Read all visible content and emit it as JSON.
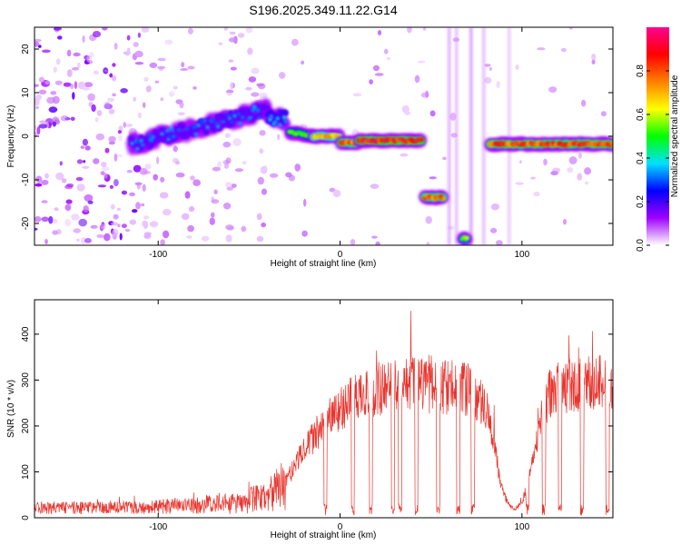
{
  "title": "S196.2025.349.11.22.G14",
  "chart_data": [
    {
      "type": "heatmap",
      "xlabel": "Height of straight line (km)",
      "ylabel": "Frequency (Hz)",
      "xlim": [
        -168,
        150
      ],
      "ylim": [
        -25,
        25
      ],
      "xticks": [
        -100,
        0,
        100
      ],
      "yticks": [
        -20,
        -10,
        0,
        10,
        20
      ],
      "colorbar": {
        "label": "Normalized spectral amplitude",
        "range": [
          0,
          1
        ],
        "ticks": [
          "0.0",
          "0.2",
          "0.4",
          "0.6",
          "0.8"
        ],
        "tick_values": [
          0,
          0.2,
          0.4,
          0.6,
          0.8
        ],
        "colors": [
          "#ffffff",
          "#a000ff",
          "#0000ff",
          "#00e0ff",
          "#00ff00",
          "#ffff00",
          "#ff8000",
          "#ff0000",
          "#ff0090"
        ]
      },
      "segments": [
        {
          "x0": -115,
          "x1": -40,
          "f0": -2,
          "f1": 6,
          "amp": 0.35
        },
        {
          "x0": -40,
          "x1": -30,
          "f0": 4,
          "f1": 4,
          "amp": 0.4
        },
        {
          "x0": -28,
          "x1": -15,
          "f0": 1,
          "f1": 0,
          "amp": 0.55
        },
        {
          "x0": -15,
          "x1": 0,
          "f0": 0,
          "f1": 0,
          "amp": 0.75
        },
        {
          "x0": 0,
          "x1": 10,
          "f0": -1.5,
          "f1": -1.5,
          "amp": 0.85
        },
        {
          "x0": 10,
          "x1": 45,
          "f0": -1,
          "f1": -1,
          "amp": 0.95
        },
        {
          "x0": 46,
          "x1": 57,
          "f0": -14,
          "f1": -14,
          "amp": 0.85
        },
        {
          "x0": 67,
          "x1": 70,
          "f0": -23.5,
          "f1": -23.5,
          "amp": 0.6
        },
        {
          "x0": 82,
          "x1": 150,
          "f0": -1.8,
          "f1": -1.8,
          "amp": 0.88
        }
      ]
    },
    {
      "type": "line",
      "xlabel": "Height of straight line (km)",
      "ylabel": "SNR (10 * v/v)",
      "xlim": [
        -168,
        150
      ],
      "ylim": [
        0,
        475
      ],
      "xticks": [
        -100,
        0,
        100
      ],
      "yticks": [
        0,
        100,
        200,
        300,
        400
      ],
      "color": "#e8352e",
      "envelope": {
        "x": [
          -168,
          -120,
          -80,
          -60,
          -40,
          -30,
          -20,
          -10,
          0,
          10,
          20,
          30,
          40,
          50,
          60,
          70,
          80,
          85,
          88,
          92,
          96,
          100,
          105,
          110,
          115,
          120,
          130,
          140,
          150
        ],
        "y": [
          20,
          22,
          28,
          35,
          55,
          95,
          175,
          245,
          290,
          320,
          340,
          350,
          350,
          345,
          345,
          340,
          300,
          200,
          90,
          40,
          20,
          40,
          120,
          250,
          320,
          340,
          350,
          355,
          360
        ]
      },
      "dropouts": [
        -8,
        7,
        17,
        29,
        33,
        42,
        54,
        65,
        73,
        103,
        112,
        121,
        133,
        147
      ]
    }
  ]
}
